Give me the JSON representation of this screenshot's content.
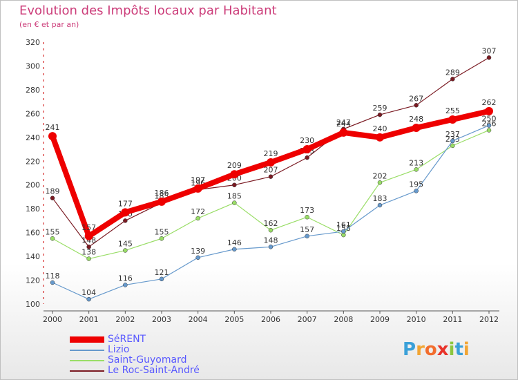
{
  "title": "Evolution des Impôts locaux par Habitant",
  "subtitle": "(en € et par an)",
  "logo": {
    "parts": [
      "P",
      "r",
      "o",
      "x",
      "i",
      "t",
      "i"
    ],
    "colors": [
      "#3aa0d8",
      "#f2a533",
      "#f26d2d",
      "#e8332a",
      "#8cc63f",
      "#3aa0d8",
      "#f2a533"
    ]
  },
  "chart_data": {
    "type": "line",
    "title": "Evolution des Impôts locaux par Habitant",
    "subtitle": "(en € et par an)",
    "x": [
      "2000",
      "2001",
      "2002",
      "2003",
      "2004",
      "2005",
      "2006",
      "2007",
      "2008",
      "2009",
      "2010",
      "2011",
      "2012"
    ],
    "ylim": [
      100,
      320
    ],
    "yticks": [
      100,
      120,
      140,
      160,
      180,
      200,
      220,
      240,
      260,
      280,
      300,
      320
    ],
    "grid": false,
    "legend_position": "bottom-left",
    "series": [
      {
        "name": "Le Roc-Saint-André",
        "color": "#7a1a22",
        "values": [
          189,
          148,
          170,
          185,
          196,
          200,
          207,
          223,
          247,
          259,
          267,
          289,
          307
        ],
        "labels": [
          "189",
          "148",
          "170",
          "185",
          "196",
          "200",
          "207",
          "223",
          "247",
          "259",
          "267",
          "289",
          "307"
        ]
      },
      {
        "name": "Saint-Guyomard",
        "color": "#99dd66",
        "values": [
          155,
          138,
          145,
          155,
          172,
          185,
          162,
          173,
          158,
          202,
          213,
          233,
          246
        ],
        "labels": [
          "155",
          "138",
          "145",
          "155",
          "172",
          "185",
          "162",
          "173",
          "158",
          "202",
          "213",
          "233",
          "246"
        ]
      },
      {
        "name": "Lizio",
        "color": "#6699cc",
        "values": [
          118,
          104,
          116,
          121,
          139,
          146,
          148,
          157,
          161,
          183,
          195,
          237,
          250
        ],
        "labels": [
          "118",
          "104",
          "116",
          "121",
          "139",
          "146",
          "148",
          "157",
          "161",
          "183",
          "195",
          "237",
          "250"
        ]
      },
      {
        "name": "SéRENT",
        "color": "#ee0000",
        "values": [
          241,
          157,
          177,
          186,
          197,
          209,
          219,
          230,
          244,
          240,
          248,
          255,
          262
        ],
        "labels": [
          "241",
          "157",
          "177",
          "186",
          "197",
          "209",
          "219",
          "230",
          "244",
          "240",
          "248",
          "255",
          "262"
        ]
      }
    ],
    "legend": [
      "SéRENT",
      "Lizio",
      "Saint-Guyomard",
      "Le Roc-Saint-André"
    ]
  }
}
